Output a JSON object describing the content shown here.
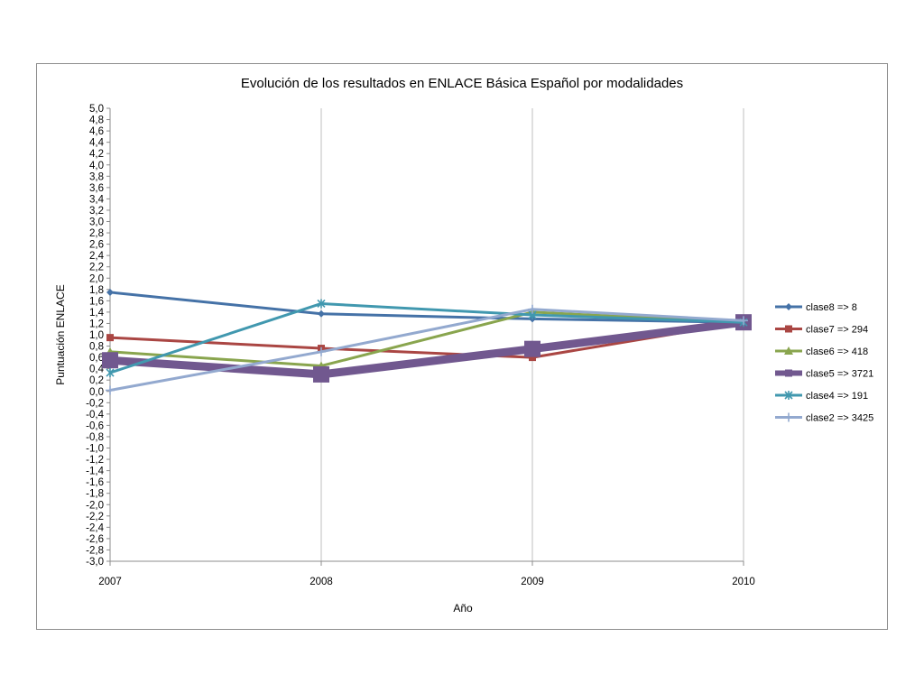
{
  "chart_data": {
    "type": "line",
    "title": "Evolución de los resultados en ENLACE Básica Español por modalidades",
    "xlabel": "Año",
    "ylabel": "Puntuación ENLACE",
    "categories": [
      "2007",
      "2008",
      "2009",
      "2010"
    ],
    "ylim": [
      -3.0,
      5.0
    ],
    "ytick_step": 0.2,
    "ytick_labels": [
      "5,0",
      "4,8",
      "4,6",
      "4,4",
      "4,2",
      "4,0",
      "3,8",
      "3,6",
      "3,4",
      "3,2",
      "3,0",
      "2,8",
      "2,6",
      "2,4",
      "2,2",
      "2,0",
      "1,8",
      "1,6",
      "1,4",
      "1,2",
      "1,0",
      "0,8",
      "0,6",
      "0,4",
      "0,2",
      "0,0",
      "-0,2",
      "-0,4",
      "-0,6",
      "-0,8",
      "-1,0",
      "-1,2",
      "-1,4",
      "-1,6",
      "-1,8",
      "-2,0",
      "-2,2",
      "-2,4",
      "-2,6",
      "-2,8",
      "-3,0"
    ],
    "grid": "vertical",
    "legend_position": "right",
    "series": [
      {
        "name": "clase8 => 8",
        "values": [
          1.75,
          1.37,
          1.28,
          1.22
        ],
        "color": "#4572a7",
        "marker": "diamond",
        "width": 3
      },
      {
        "name": "clase7 => 294",
        "values": [
          0.95,
          0.76,
          0.6,
          1.22
        ],
        "color": "#aa4643",
        "marker": "square",
        "width": 3
      },
      {
        "name": "clase6 => 418",
        "values": [
          0.7,
          0.45,
          1.4,
          1.22
        ],
        "color": "#89a54e",
        "marker": "triangle",
        "width": 3
      },
      {
        "name": "clase5 => 3721",
        "values": [
          0.55,
          0.3,
          0.75,
          1.22
        ],
        "color": "#71588f",
        "marker": "square",
        "width": 9
      },
      {
        "name": "clase4 => 191",
        "values": [
          0.33,
          1.55,
          1.35,
          1.22
        ],
        "color": "#4198af",
        "marker": "star",
        "width": 3
      },
      {
        "name": "clase2 => 3425",
        "values": [
          0.02,
          0.7,
          1.45,
          1.25
        ],
        "color": "#93a9cf",
        "marker": "plus",
        "width": 3
      }
    ]
  }
}
